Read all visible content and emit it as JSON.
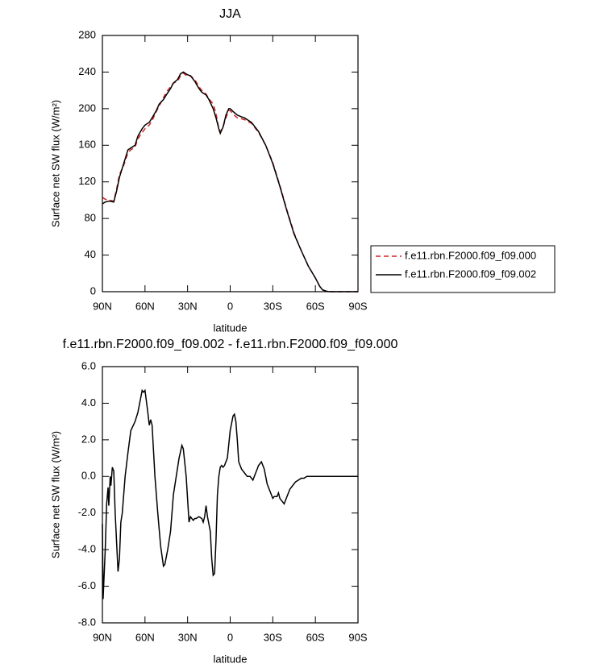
{
  "chart_data": [
    {
      "type": "line",
      "title": "JJA",
      "x_label": "latitude",
      "y_label": "Surface net SW flux (W/m²)",
      "x": [
        90,
        88,
        85,
        82,
        80,
        78,
        75,
        72,
        70,
        67,
        65,
        62,
        60,
        57,
        55,
        52,
        50,
        47,
        45,
        42,
        40,
        37,
        35,
        33,
        30,
        28,
        25,
        22,
        20,
        17,
        15,
        12,
        10,
        8,
        7,
        5,
        3,
        1,
        0,
        -2,
        -5,
        -8,
        -10,
        -15,
        -20,
        -25,
        -30,
        -35,
        -40,
        -45,
        -50,
        -55,
        -60,
        -63,
        -65,
        -68,
        -70,
        -80,
        -90
      ],
      "series": [
        {
          "name": "f.e11.rbn.F2000.f09_f09.000",
          "color": "#d62020",
          "dashed": true,
          "values": [
            103,
            101,
            100,
            99,
            112,
            128,
            138,
            152,
            155,
            158,
            167,
            174,
            178,
            182,
            187,
            197,
            203,
            212,
            218,
            224,
            228,
            230,
            236,
            239,
            235,
            236,
            232,
            224,
            220,
            216,
            211,
            205,
            195,
            178,
            175,
            180,
            190,
            198,
            198,
            194,
            190,
            189,
            188,
            184,
            174,
            160,
            141,
            116,
            89,
            64,
            45,
            28,
            15,
            6,
            2,
            0.5,
            0,
            0,
            0
          ]
        },
        {
          "name": "f.e11.rbn.F2000.f09_f09.002",
          "color": "#000000",
          "dashed": false,
          "values": [
            96,
            98,
            99,
            98,
            110,
            125,
            140,
            155,
            157,
            160,
            170,
            178,
            182,
            185,
            190,
            198,
            205,
            210,
            215,
            222,
            228,
            232,
            238,
            240,
            237,
            236,
            230,
            222,
            218,
            215,
            210,
            200,
            190,
            178,
            173,
            180,
            193,
            200,
            200,
            197,
            193,
            191,
            190,
            185,
            175,
            160,
            140,
            115,
            88,
            63,
            45,
            28,
            15,
            6,
            2,
            0.5,
            0,
            0,
            0
          ]
        }
      ],
      "xlim": [
        90,
        -90
      ],
      "xticks": [
        {
          "value": 90,
          "label": "90N"
        },
        {
          "value": 60,
          "label": "60N"
        },
        {
          "value": 30,
          "label": "30N"
        },
        0,
        {
          "value": -30,
          "label": "30S"
        },
        {
          "value": -60,
          "label": "60S"
        },
        {
          "value": -90,
          "label": "90S"
        }
      ],
      "ylim": [
        0,
        280
      ],
      "yticks": [
        0,
        40,
        80,
        120,
        160,
        200,
        240,
        280
      ],
      "legend": "right"
    },
    {
      "type": "line",
      "title": "f.e11.rbn.F2000.f09_f09.002 - f.e11.rbn.F2000.f09_f09.000",
      "x_label": "latitude",
      "y_label": "Surface net SW flux (W/m²)",
      "x": [
        90,
        89.5,
        88,
        87,
        86,
        85.5,
        84.5,
        84,
        83,
        82,
        81,
        79,
        78,
        77,
        76,
        74,
        72,
        70,
        67,
        65,
        62,
        61,
        60,
        58,
        57,
        56,
        55,
        53,
        51,
        49,
        47,
        46,
        44,
        42,
        40,
        38,
        36,
        34,
        33,
        31,
        29,
        28,
        26,
        25,
        24,
        22,
        20,
        19,
        18,
        17,
        16,
        14,
        13,
        12,
        11,
        10,
        9,
        8,
        7,
        6,
        5,
        4,
        2,
        0,
        -2,
        -3,
        -4,
        -5,
        -6,
        -8,
        -10,
        -12,
        -14,
        -16,
        -18,
        -20,
        -22,
        -24,
        -26,
        -28,
        -30,
        -31,
        -33,
        -34,
        -35,
        -37,
        -38,
        -40,
        -42,
        -44,
        -46,
        -48,
        -50,
        -52,
        -54,
        -60,
        -90
      ],
      "series": [
        {
          "color": "#000000",
          "dashed": false,
          "values": [
            -2.6,
            -6.7,
            -4,
            -1.5,
            -0.6,
            -1.6,
            0,
            -0.5,
            0.5,
            0.3,
            -2,
            -5.2,
            -4.5,
            -2.5,
            -2,
            0,
            1.3,
            2.5,
            3,
            3.5,
            4.7,
            4.6,
            4.7,
            3.5,
            2.8,
            3.1,
            2.8,
            0,
            -2,
            -3.8,
            -4.9,
            -4.8,
            -4,
            -3,
            -1,
            0,
            1,
            1.7,
            1.5,
            0,
            -2.5,
            -2.2,
            -2.4,
            -2.3,
            -2.3,
            -2.2,
            -2.3,
            -2.5,
            -2.2,
            -1.6,
            -2.2,
            -3,
            -4.5,
            -5.4,
            -5.3,
            -3.5,
            -1,
            0,
            0.5,
            0.6,
            0.5,
            0.6,
            1,
            2.5,
            3.3,
            3.4,
            3,
            2,
            0.8,
            0.4,
            0.2,
            0,
            0,
            -0.2,
            0.2,
            0.6,
            0.8,
            0.4,
            -0.4,
            -0.8,
            -1.2,
            -1.1,
            -1.1,
            -0.9,
            -1.2,
            -1.4,
            -1.5,
            -1.1,
            -0.7,
            -0.5,
            -0.3,
            -0.2,
            -0.1,
            -0.1,
            0,
            0,
            0
          ]
        }
      ],
      "xlim": [
        90,
        -90
      ],
      "xticks": [
        {
          "value": 90,
          "label": "90N"
        },
        {
          "value": 60,
          "label": "60N"
        },
        {
          "value": 30,
          "label": "30N"
        },
        0,
        {
          "value": -30,
          "label": "30S"
        },
        {
          "value": -60,
          "label": "60S"
        },
        {
          "value": -90,
          "label": "90S"
        }
      ],
      "ylim": [
        -8,
        6
      ],
      "yticks": [
        {
          "value": -8,
          "label": "-8.0"
        },
        {
          "value": -6,
          "label": "-6.0"
        },
        {
          "value": -4,
          "label": "-4.0"
        },
        {
          "value": -2,
          "label": "-2.0"
        },
        {
          "value": 0,
          "label": "0.0"
        },
        {
          "value": 2,
          "label": "2.0"
        },
        {
          "value": 4,
          "label": "4.0"
        },
        {
          "value": 6,
          "label": "6.0"
        }
      ]
    }
  ]
}
